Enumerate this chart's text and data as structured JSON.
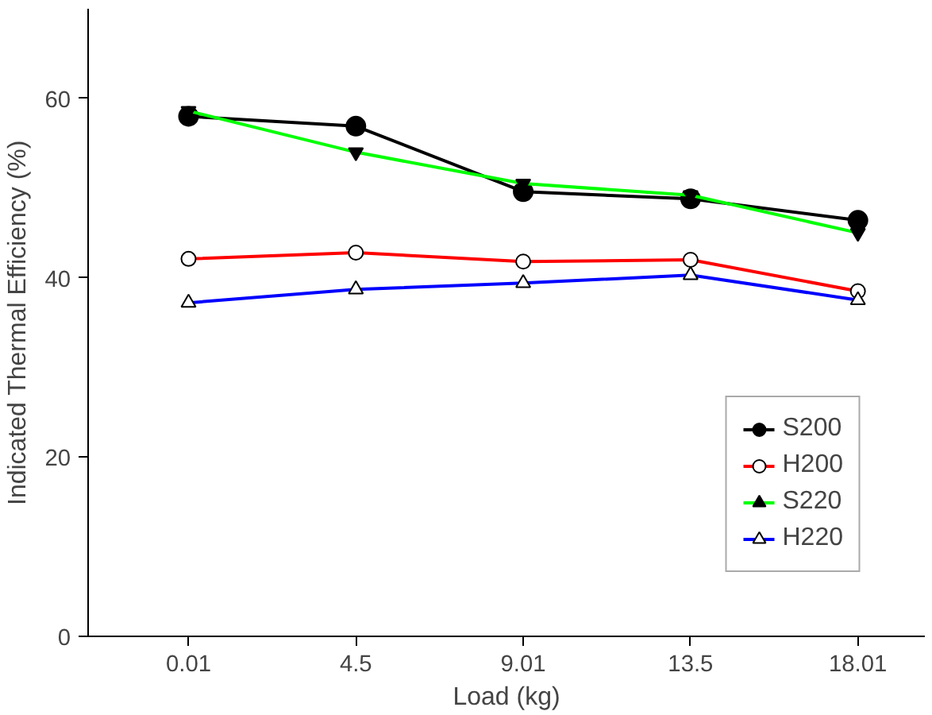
{
  "chart_data": {
    "type": "line",
    "xlabel": "Load (kg)",
    "ylabel": "Indicated Thermal Efficiency (%)",
    "categories": [
      "0.01",
      "4.5",
      "9.01",
      "13.5",
      "18.01"
    ],
    "ylim": [
      0,
      70
    ],
    "yticks": [
      0,
      20,
      40,
      60
    ],
    "grid": false,
    "legend": "bottom right",
    "series": [
      {
        "name": "S200",
        "color": "#000000",
        "marker": "circle",
        "values": [
          58.0,
          56.9,
          49.6,
          48.8,
          46.4
        ]
      },
      {
        "name": "H200",
        "color": "#ff0000",
        "marker": "circle",
        "values": [
          42.1,
          42.8,
          41.8,
          42.0,
          38.5
        ]
      },
      {
        "name": "S220",
        "color": "#00ff00",
        "marker": "triangle",
        "values": [
          58.6,
          54.0,
          50.5,
          49.2,
          45.0
        ]
      },
      {
        "name": "H220",
        "color": "#0000ff",
        "marker": "triangle",
        "values": [
          37.2,
          38.7,
          39.4,
          40.3,
          37.5
        ]
      }
    ]
  }
}
